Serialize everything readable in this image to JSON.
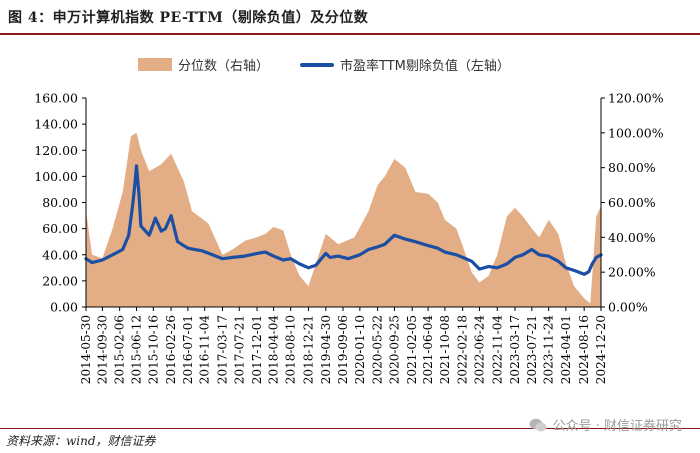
{
  "title": "图 4：申万计算机指数 PE-TTM（剔除负值）及分位数",
  "source": "资料来源：wind，财信证券",
  "watermark": "公众号 · 财信证券研究",
  "chart_data": {
    "type": "line",
    "series": [
      {
        "name": "分位数（右轴）",
        "kind": "area",
        "axis": "right",
        "color": "#e3ad86",
        "x": [
          "2014-05-30",
          "2014-07-15",
          "2014-09-30",
          "2014-12-15",
          "2015-03-01",
          "2015-05-01",
          "2015-06-12",
          "2015-07-15",
          "2015-09-15",
          "2015-12-15",
          "2016-02-26",
          "2016-06-01",
          "2016-08-01",
          "2016-12-01",
          "2017-03-17",
          "2017-06-01",
          "2017-09-01",
          "2017-12-01",
          "2018-02-01",
          "2018-04-04",
          "2018-06-15",
          "2018-08-10",
          "2018-10-15",
          "2018-12-21",
          "2019-02-15",
          "2019-04-30",
          "2019-08-01",
          "2019-12-01",
          "2020-03-15",
          "2020-05-22",
          "2020-07-15",
          "2020-09-25",
          "2020-12-15",
          "2021-03-01",
          "2021-06-04",
          "2021-08-15",
          "2021-10-08",
          "2022-01-01",
          "2022-02-18",
          "2022-04-27",
          "2022-06-24",
          "2022-09-01",
          "2022-11-04",
          "2023-01-15",
          "2023-03-17",
          "2023-05-15",
          "2023-07-21",
          "2023-09-15",
          "2023-11-24",
          "2024-02-05",
          "2024-04-01",
          "2024-06-01",
          "2024-08-16",
          "2024-10-01",
          "2024-11-15",
          "2024-12-20"
        ],
        "values": [
          55,
          30,
          28,
          45,
          66,
          98,
          100,
          90,
          78,
          82,
          88,
          72,
          55,
          48,
          30,
          33,
          38,
          40,
          42,
          46,
          44,
          30,
          18,
          12,
          25,
          42,
          36,
          40,
          55,
          70,
          75,
          85,
          80,
          66,
          65,
          60,
          50,
          45,
          35,
          20,
          14,
          18,
          30,
          52,
          57,
          52,
          45,
          40,
          50,
          42,
          25,
          12,
          5,
          2,
          52,
          58
        ]
      },
      {
        "name": "市盈率TTM剔除负值（左轴）",
        "kind": "line",
        "axis": "left",
        "color": "#1a4fa3",
        "x": [
          "2014-05-30",
          "2014-07-15",
          "2014-09-30",
          "2014-12-15",
          "2015-03-01",
          "2015-04-15",
          "2015-05-15",
          "2015-06-01",
          "2015-06-12",
          "2015-07-01",
          "2015-07-15",
          "2015-09-15",
          "2015-11-01",
          "2015-12-15",
          "2016-01-15",
          "2016-02-26",
          "2016-04-15",
          "2016-07-01",
          "2016-10-15",
          "2017-01-01",
          "2017-03-17",
          "2017-06-01",
          "2017-09-01",
          "2017-12-01",
          "2018-02-01",
          "2018-04-04",
          "2018-06-15",
          "2018-08-10",
          "2018-10-15",
          "2018-12-21",
          "2019-02-15",
          "2019-04-30",
          "2019-06-01",
          "2019-08-01",
          "2019-10-15",
          "2020-01-10",
          "2020-03-15",
          "2020-05-22",
          "2020-07-15",
          "2020-09-25",
          "2020-12-15",
          "2021-03-01",
          "2021-06-04",
          "2021-08-15",
          "2021-10-08",
          "2022-01-01",
          "2022-02-18",
          "2022-04-27",
          "2022-06-24",
          "2022-09-01",
          "2022-11-04",
          "2023-01-15",
          "2023-03-17",
          "2023-05-15",
          "2023-07-21",
          "2023-09-15",
          "2023-11-24",
          "2024-02-05",
          "2024-04-01",
          "2024-06-01",
          "2024-08-16",
          "2024-09-20",
          "2024-10-15",
          "2024-11-15",
          "2024-12-20"
        ],
        "values": [
          37,
          34,
          36,
          40,
          44,
          55,
          78,
          95,
          108,
          86,
          62,
          55,
          68,
          58,
          60,
          70,
          50,
          45,
          43,
          40,
          37,
          38,
          39,
          41,
          42,
          39,
          36,
          37,
          33,
          30,
          32,
          41,
          38,
          39,
          37,
          40,
          44,
          46,
          48,
          55,
          52,
          50,
          47,
          45,
          42,
          40,
          38,
          35,
          29,
          31,
          30,
          33,
          38,
          40,
          44,
          40,
          39,
          35,
          30,
          28,
          25,
          27,
          33,
          38,
          40
        ]
      }
    ],
    "x_ticks": [
      "2014-05-30",
      "2014-09-30",
      "2015-02-06",
      "2015-06-12",
      "2015-10-16",
      "2016-02-26",
      "2016-07-01",
      "2016-11-04",
      "2017-03-17",
      "2017-07-21",
      "2017-12-01",
      "2018-04-04",
      "2018-08-10",
      "2018-12-21",
      "2019-04-30",
      "2019-09-06",
      "2020-01-10",
      "2020-05-22",
      "2020-09-25",
      "2021-02-05",
      "2021-06-04",
      "2021-10-08",
      "2022-02-18",
      "2022-06-24",
      "2022-11-04",
      "2023-03-17",
      "2023-07-21",
      "2023-11-24",
      "2024-04-01",
      "2024-08-16",
      "2024-12-20"
    ],
    "y_left_ticks": [
      "0.00",
      "20.00",
      "40.00",
      "60.00",
      "80.00",
      "100.00",
      "120.00",
      "140.00",
      "160.00"
    ],
    "y_right_ticks": [
      "0.00%",
      "20.00%",
      "40.00%",
      "60.00%",
      "80.00%",
      "100.00%",
      "120.00%"
    ],
    "y_left_range": [
      0,
      160
    ],
    "y_right_range": [
      0,
      120
    ],
    "x_range": [
      "2014-05-30",
      "2024-12-20"
    ],
    "legend_position": "top-center",
    "grid": false
  }
}
